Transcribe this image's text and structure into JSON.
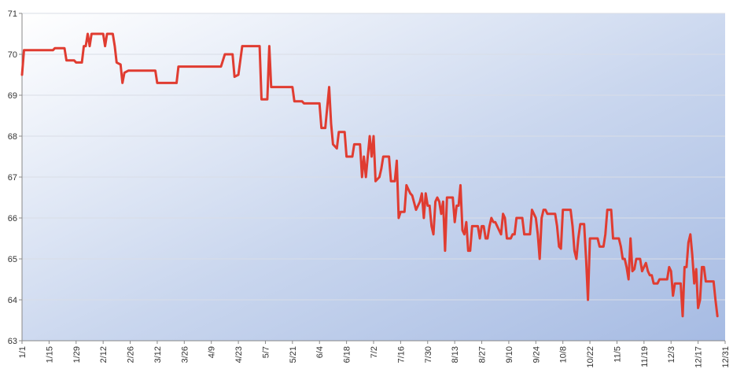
{
  "chart_data": {
    "type": "line",
    "title": "",
    "xlabel": "",
    "ylabel": "",
    "x_tick_labels": [
      "1/1",
      "1/15",
      "1/29",
      "2/12",
      "2/26",
      "3/12",
      "3/26",
      "4/9",
      "4/23",
      "5/7",
      "5/21",
      "6/4",
      "6/18",
      "7/2",
      "7/16",
      "7/30",
      "8/13",
      "8/27",
      "9/10",
      "9/24",
      "10/8",
      "10/22",
      "11/5",
      "11/19",
      "12/3",
      "12/17",
      "12/31"
    ],
    "y_tick_labels": [
      "63",
      "64",
      "65",
      "66",
      "67",
      "68",
      "69",
      "70",
      "71"
    ],
    "xlim": [
      1,
      365
    ],
    "ylim": [
      63,
      71
    ],
    "grid": "horizontal",
    "legend": "none",
    "series": [
      {
        "color": "#e03c31",
        "points": [
          [
            1,
            69.5
          ],
          [
            2,
            70.1
          ],
          [
            10,
            70.1
          ],
          [
            17,
            70.1
          ],
          [
            18,
            70.15
          ],
          [
            23,
            70.15
          ],
          [
            24,
            69.85
          ],
          [
            28,
            69.85
          ],
          [
            29,
            69.8
          ],
          [
            32,
            69.8
          ],
          [
            33,
            70.2
          ],
          [
            34,
            70.2
          ],
          [
            35,
            70.5
          ],
          [
            36,
            70.2
          ],
          [
            37,
            70.5
          ],
          [
            43,
            70.5
          ],
          [
            44,
            70.2
          ],
          [
            45,
            70.5
          ],
          [
            48,
            70.5
          ],
          [
            49,
            70.2
          ],
          [
            50,
            69.8
          ],
          [
            52,
            69.75
          ],
          [
            53,
            69.3
          ],
          [
            54,
            69.55
          ],
          [
            56,
            69.6
          ],
          [
            70,
            69.6
          ],
          [
            71,
            69.3
          ],
          [
            81,
            69.3
          ],
          [
            82,
            69.7
          ],
          [
            104,
            69.7
          ],
          [
            106,
            70.0
          ],
          [
            110,
            70.0
          ],
          [
            111,
            69.45
          ],
          [
            113,
            69.5
          ],
          [
            115,
            70.2
          ],
          [
            124,
            70.2
          ],
          [
            125,
            68.9
          ],
          [
            128,
            68.9
          ],
          [
            129,
            70.2
          ],
          [
            130,
            69.2
          ],
          [
            141,
            69.2
          ],
          [
            142,
            68.85
          ],
          [
            146,
            68.85
          ],
          [
            147,
            68.8
          ],
          [
            155,
            68.8
          ],
          [
            156,
            68.2
          ],
          [
            158,
            68.2
          ],
          [
            160,
            69.2
          ],
          [
            161,
            68.3
          ],
          [
            162,
            67.8
          ],
          [
            164,
            67.7
          ],
          [
            165,
            68.1
          ],
          [
            168,
            68.1
          ],
          [
            169,
            67.5
          ],
          [
            172,
            67.5
          ],
          [
            173,
            67.8
          ],
          [
            176,
            67.8
          ],
          [
            177,
            67.0
          ],
          [
            178,
            67.5
          ],
          [
            179,
            67.0
          ],
          [
            180,
            67.5
          ],
          [
            181,
            68.0
          ],
          [
            182,
            67.5
          ],
          [
            183,
            68.0
          ],
          [
            184,
            66.9
          ],
          [
            186,
            67.0
          ],
          [
            187,
            67.2
          ],
          [
            188,
            67.5
          ],
          [
            191,
            67.5
          ],
          [
            192,
            66.9
          ],
          [
            194,
            66.9
          ],
          [
            195,
            67.4
          ],
          [
            196,
            66.0
          ],
          [
            197,
            66.15
          ],
          [
            199,
            66.15
          ],
          [
            200,
            66.8
          ],
          [
            201,
            66.7
          ],
          [
            202,
            66.6
          ],
          [
            203,
            66.55
          ],
          [
            205,
            66.2
          ],
          [
            206,
            66.3
          ],
          [
            207,
            66.4
          ],
          [
            208,
            66.6
          ],
          [
            209,
            66.0
          ],
          [
            210,
            66.6
          ],
          [
            211,
            66.3
          ],
          [
            212,
            66.3
          ],
          [
            213,
            65.8
          ],
          [
            214,
            65.6
          ],
          [
            215,
            66.4
          ],
          [
            216,
            66.5
          ],
          [
            217,
            66.4
          ],
          [
            218,
            66.1
          ],
          [
            219,
            66.4
          ],
          [
            220,
            65.2
          ],
          [
            221,
            66.5
          ],
          [
            224,
            66.5
          ],
          [
            225,
            65.9
          ],
          [
            226,
            66.3
          ],
          [
            227,
            66.3
          ],
          [
            228,
            66.8
          ],
          [
            229,
            65.7
          ],
          [
            230,
            65.6
          ],
          [
            231,
            65.9
          ],
          [
            232,
            65.2
          ],
          [
            233,
            65.2
          ],
          [
            234,
            65.8
          ],
          [
            237,
            65.8
          ],
          [
            238,
            65.5
          ],
          [
            239,
            65.8
          ],
          [
            240,
            65.8
          ],
          [
            241,
            65.5
          ],
          [
            242,
            65.5
          ],
          [
            243,
            65.8
          ],
          [
            244,
            66.0
          ],
          [
            245,
            65.9
          ],
          [
            246,
            65.9
          ],
          [
            248,
            65.7
          ],
          [
            249,
            65.6
          ],
          [
            250,
            66.1
          ],
          [
            251,
            66.0
          ],
          [
            252,
            65.5
          ],
          [
            254,
            65.5
          ],
          [
            255,
            65.6
          ],
          [
            256,
            65.6
          ],
          [
            257,
            66.0
          ],
          [
            260,
            66.0
          ],
          [
            261,
            65.6
          ],
          [
            264,
            65.6
          ],
          [
            265,
            66.2
          ],
          [
            267,
            66.0
          ],
          [
            268,
            65.6
          ],
          [
            269,
            65.0
          ],
          [
            270,
            66.0
          ],
          [
            271,
            66.2
          ],
          [
            272,
            66.2
          ],
          [
            273,
            66.1
          ],
          [
            277,
            66.1
          ],
          [
            278,
            65.8
          ],
          [
            279,
            65.3
          ],
          [
            280,
            65.25
          ],
          [
            281,
            66.2
          ],
          [
            285,
            66.2
          ],
          [
            286,
            65.8
          ],
          [
            287,
            65.2
          ],
          [
            288,
            65.0
          ],
          [
            289,
            65.5
          ],
          [
            290,
            65.85
          ],
          [
            292,
            65.85
          ],
          [
            293,
            65.0
          ],
          [
            294,
            64.0
          ],
          [
            295,
            65.5
          ],
          [
            299,
            65.5
          ],
          [
            300,
            65.3
          ],
          [
            302,
            65.3
          ],
          [
            303,
            65.6
          ],
          [
            304,
            66.2
          ],
          [
            306,
            66.2
          ],
          [
            307,
            65.5
          ],
          [
            310,
            65.5
          ],
          [
            311,
            65.3
          ],
          [
            312,
            65.0
          ],
          [
            313,
            65.0
          ],
          [
            314,
            64.8
          ],
          [
            315,
            64.5
          ],
          [
            316,
            65.5
          ],
          [
            317,
            64.7
          ],
          [
            318,
            64.75
          ],
          [
            319,
            65.0
          ],
          [
            321,
            65.0
          ],
          [
            322,
            64.7
          ],
          [
            323,
            64.8
          ],
          [
            324,
            64.9
          ],
          [
            325,
            64.7
          ],
          [
            326,
            64.6
          ],
          [
            327,
            64.6
          ],
          [
            328,
            64.4
          ],
          [
            330,
            64.4
          ],
          [
            331,
            64.5
          ],
          [
            335,
            64.5
          ],
          [
            336,
            64.8
          ],
          [
            337,
            64.7
          ],
          [
            338,
            64.1
          ],
          [
            339,
            64.4
          ],
          [
            342,
            64.4
          ],
          [
            343,
            63.6
          ],
          [
            344,
            64.8
          ],
          [
            345,
            64.8
          ],
          [
            346,
            65.4
          ],
          [
            347,
            65.6
          ],
          [
            348,
            65.1
          ],
          [
            349,
            64.4
          ],
          [
            350,
            64.75
          ],
          [
            351,
            63.8
          ],
          [
            352,
            64.0
          ],
          [
            353,
            64.8
          ],
          [
            354,
            64.8
          ],
          [
            355,
            64.45
          ],
          [
            359,
            64.45
          ],
          [
            360,
            64.0
          ],
          [
            361,
            63.6
          ]
        ]
      }
    ]
  }
}
